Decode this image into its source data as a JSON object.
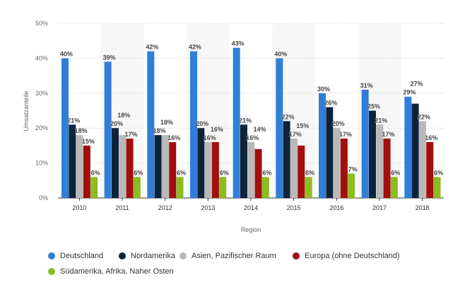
{
  "chart_data": {
    "type": "bar",
    "xlabel": "Region",
    "ylabel": "Umsatzanteile",
    "ylim": [
      0,
      50
    ],
    "yticks": [
      "0%",
      "10%",
      "20%",
      "30%",
      "40%",
      "50%"
    ],
    "grid": true,
    "legend_position": "bottom",
    "categories": [
      "2010",
      "2011",
      "2012",
      "2013",
      "2014",
      "2015",
      "2016",
      "2017",
      "2018"
    ],
    "series": [
      {
        "name": "Deutschland",
        "color": "#2f7ed8",
        "values": [
          40,
          39,
          42,
          42,
          43,
          40,
          30,
          31,
          29
        ]
      },
      {
        "name": "Nordamerika",
        "color": "#0d233a",
        "values": [
          21,
          20,
          18,
          20,
          21,
          22,
          26,
          25,
          27
        ]
      },
      {
        "name": "Asien, Pazifischer Raum",
        "color": "#b9b9b9",
        "values": [
          18,
          18,
          18,
          16,
          16,
          17,
          20,
          21,
          22
        ]
      },
      {
        "name": "Europa (ohne Deutschland)",
        "color": "#a30e0e",
        "values": [
          15,
          17,
          16,
          16,
          14,
          15,
          17,
          17,
          16
        ]
      },
      {
        "name": "Südamerika, Afrika, Naher Osten",
        "color": "#8bbc21",
        "values": [
          6,
          6,
          6,
          6,
          6,
          6,
          7,
          6,
          6
        ]
      }
    ]
  }
}
